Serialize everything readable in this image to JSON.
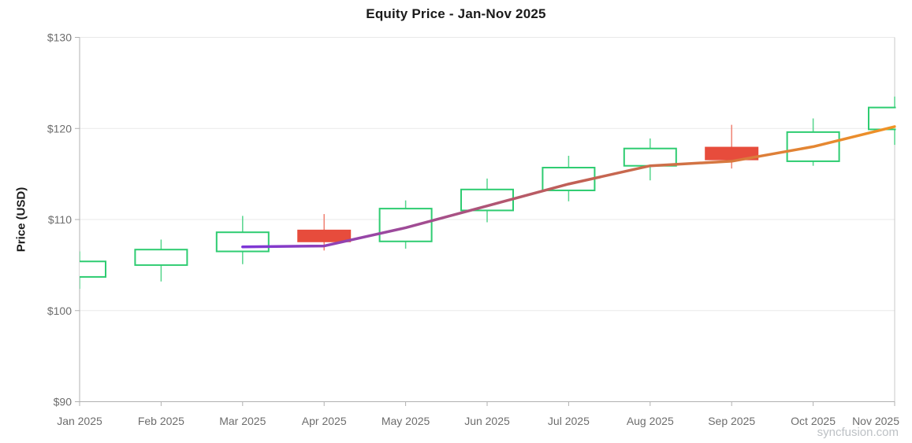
{
  "title": "Equity Price - Jan-Nov 2025",
  "watermark": "syncfusion.com",
  "chart_data": {
    "type": "candlestick",
    "title": "Equity Price - Jan-Nov 2025",
    "xlabel": "",
    "ylabel": "Price (USD)",
    "categories": [
      "Jan 2025",
      "Feb 2025",
      "Mar 2025",
      "Apr 2025",
      "May 2025",
      "Jun 2025",
      "Jul 2025",
      "Aug 2025",
      "Sep 2025",
      "Oct 2025",
      "Nov 2025"
    ],
    "y_tick_labels": [
      "$90",
      "$100",
      "$110",
      "$120",
      "$130"
    ],
    "y_tick_values": [
      90,
      100,
      110,
      120,
      130
    ],
    "ylim": [
      90,
      130
    ],
    "grid": "horizontal-only",
    "legend": "none",
    "series": [
      {
        "name": "Equity Price",
        "type": "candlestick",
        "points": [
          {
            "x": "Jan 2025",
            "open": 103.7,
            "high": 106.5,
            "low": 102.4,
            "close": 105.4
          },
          {
            "x": "Feb 2025",
            "open": 105.0,
            "high": 107.8,
            "low": 103.2,
            "close": 106.7
          },
          {
            "x": "Mar 2025",
            "open": 106.5,
            "high": 110.4,
            "low": 105.1,
            "close": 108.6
          },
          {
            "x": "Apr 2025",
            "open": 108.8,
            "high": 110.6,
            "low": 106.6,
            "close": 107.6
          },
          {
            "x": "May 2025",
            "open": 107.6,
            "high": 112.1,
            "low": 106.8,
            "close": 111.2
          },
          {
            "x": "Jun 2025",
            "open": 111.0,
            "high": 114.5,
            "low": 109.7,
            "close": 113.3
          },
          {
            "x": "Jul 2025",
            "open": 113.2,
            "high": 117.0,
            "low": 112.0,
            "close": 115.7
          },
          {
            "x": "Aug 2025",
            "open": 115.9,
            "high": 118.9,
            "low": 114.3,
            "close": 117.8
          },
          {
            "x": "Sep 2025",
            "open": 117.9,
            "high": 120.4,
            "low": 115.6,
            "close": 116.6
          },
          {
            "x": "Oct 2025",
            "open": 116.4,
            "high": 121.1,
            "low": 115.9,
            "close": 119.6
          },
          {
            "x": "Nov 2025",
            "open": 119.9,
            "high": 123.5,
            "low": 118.2,
            "close": 122.3
          }
        ]
      },
      {
        "name": "Trendline",
        "type": "line",
        "gradient_stops": [
          "#7d36d8",
          "#c05f56",
          "#f09326"
        ],
        "points": [
          {
            "x": "Mar 2025",
            "y": 107.0
          },
          {
            "x": "Apr 2025",
            "y": 107.1
          },
          {
            "x": "May 2025",
            "y": 109.1
          },
          {
            "x": "Jun 2025",
            "y": 111.5
          },
          {
            "x": "Jul 2025",
            "y": 113.9
          },
          {
            "x": "Aug 2025",
            "y": 115.9
          },
          {
            "x": "Sep 2025",
            "y": 116.4
          },
          {
            "x": "Oct 2025",
            "y": 118.0
          },
          {
            "x": "Nov 2025",
            "y": 120.2
          }
        ]
      }
    ],
    "colors": {
      "bull_stroke": "#2ecc71",
      "bull_fill": "#ffffff",
      "bull_wick": "#55d58c",
      "bear_fill": "#e74c3c",
      "bear_wick": "#f08272",
      "grid": "#e9e9e9",
      "axis": "#b1b1b1",
      "axis_right": "#c9c9c9",
      "label": "#6d6d6d",
      "title": "#1a1a1a",
      "watermark": "#bdc1c5"
    }
  }
}
